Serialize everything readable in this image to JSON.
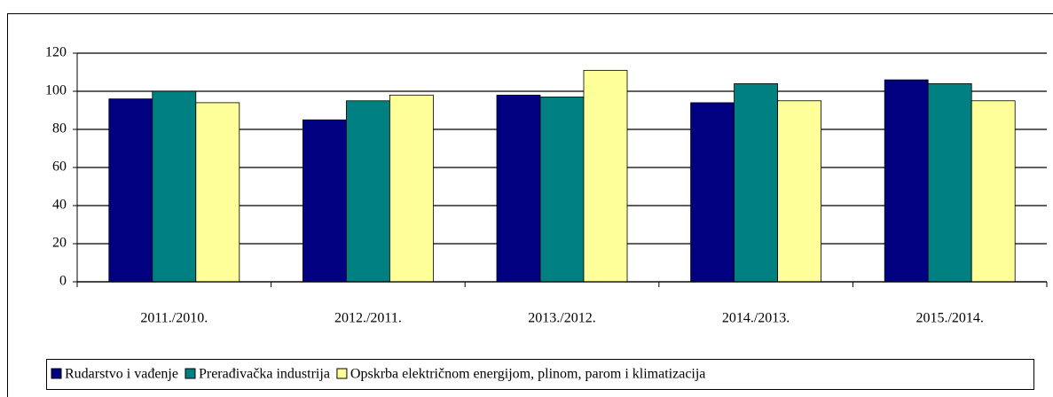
{
  "chart_data": {
    "type": "bar",
    "categories": [
      "2011./2010.",
      "2012./2011.",
      "2013./2012.",
      "2014./2013.",
      "2015./2014."
    ],
    "series": [
      {
        "name": "Rudarstvo i vađenje",
        "color": "#000080",
        "values": [
          96,
          85,
          98,
          94,
          106
        ]
      },
      {
        "name": "Prerađivačka industrija",
        "color": "#008080",
        "values": [
          100,
          95,
          97,
          104,
          104
        ]
      },
      {
        "name": "Opskrba električnom energijom, plinom, parom i klimatizacija",
        "color": "#ffff99",
        "values": [
          94,
          98,
          111,
          95,
          95
        ]
      }
    ],
    "ylim": [
      0,
      120
    ],
    "yticks": [
      0,
      20,
      40,
      60,
      80,
      100,
      120
    ],
    "grid": true,
    "legend": "bottom"
  }
}
